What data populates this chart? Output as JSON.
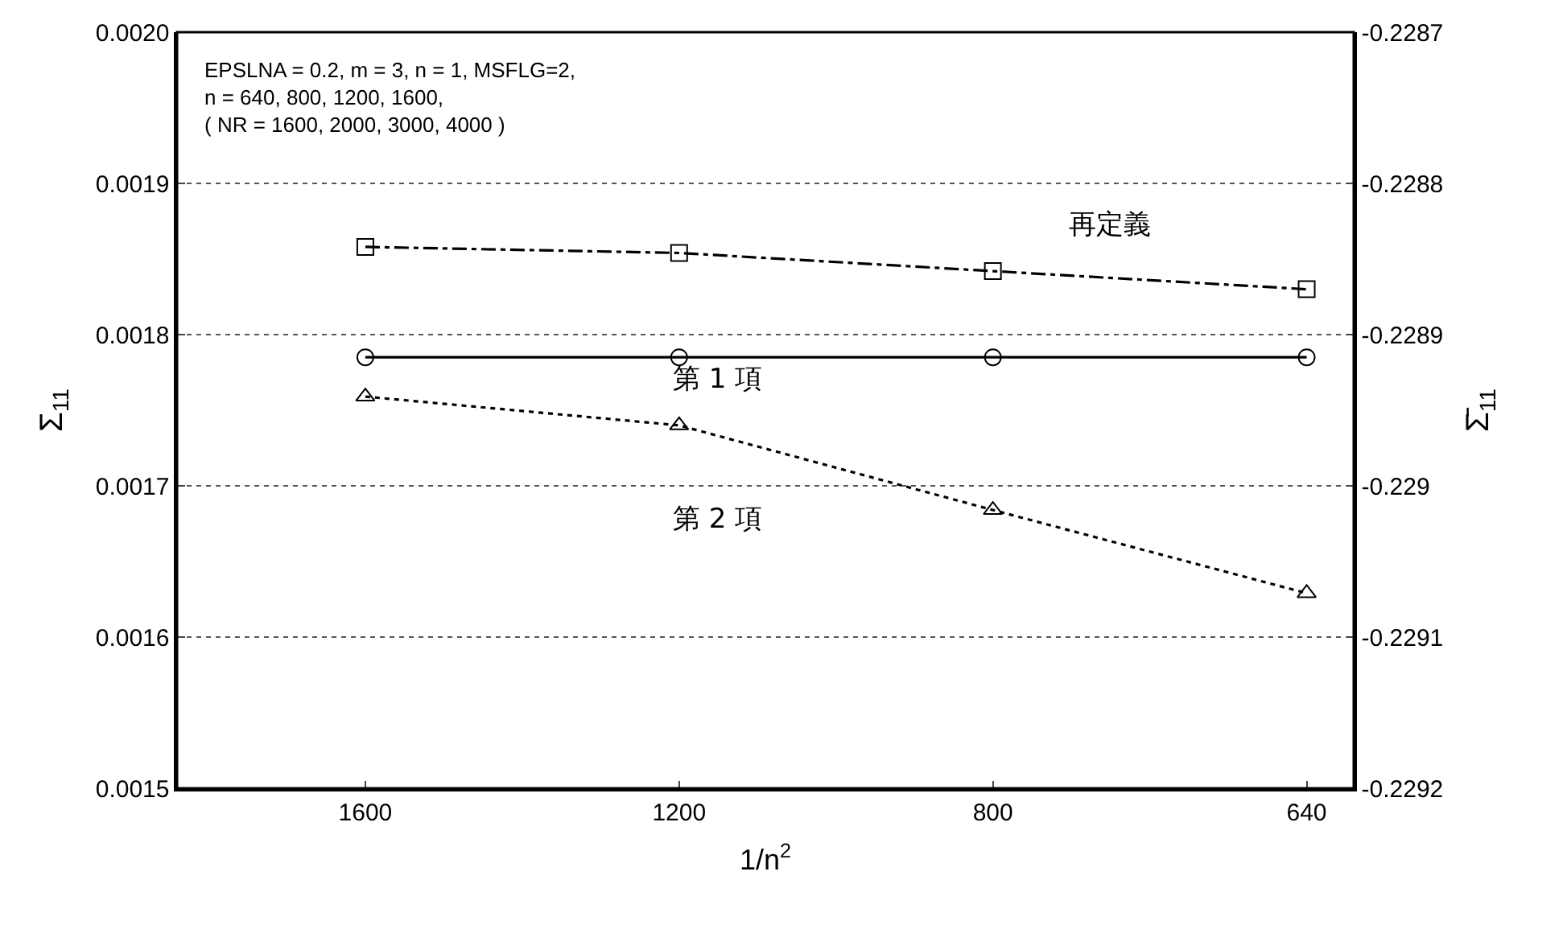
{
  "chart_data": {
    "type": "line",
    "xlabel": "1/n$^{2}$",
    "ylabel": "Σ$_{11}$",
    "y2label": "Σ̄$_{11}$",
    "categories": [
      "1600",
      "1200",
      "800",
      "640"
    ],
    "series": [
      {
        "color": "#000000",
        "marker": "square",
        "line_style": "dashdot",
        "values": [
          0.001858,
          0.001854,
          0.001842,
          0.00183
        ]
      },
      {
        "color": "#000000",
        "marker": "circle",
        "line_style": "solid",
        "values": [
          0.001785,
          0.001785,
          0.001785,
          0.001785
        ]
      },
      {
        "color": "#000000",
        "marker": "triangle",
        "line_style": "dotted",
        "values": [
          0.001759,
          0.00174,
          0.001684,
          0.001629
        ]
      }
    ],
    "ylim": [
      0.0015,
      0.002
    ],
    "yticks": [
      0.0015,
      0.0016,
      0.0017,
      0.0018,
      0.0019,
      {
        "value": 0.002,
        "label": "0.0020"
      }
    ],
    "y2lim": [
      -0.2292,
      -0.2287
    ],
    "y2ticks": [
      -0.2292,
      -0.2291,
      -0.229,
      -0.2289,
      -0.2288,
      -0.2287
    ],
    "grid": "y",
    "legend": false,
    "annotations": [
      "EPSLNA = 0.2, m = 3, n = 1, MSFLG=2,\nn = 640, 800, 1200, 1600,\n( NR = 1600, 2000, 3000, 4000 )",
      "再定義",
      "第 1 項",
      "第 2 項"
    ]
  }
}
